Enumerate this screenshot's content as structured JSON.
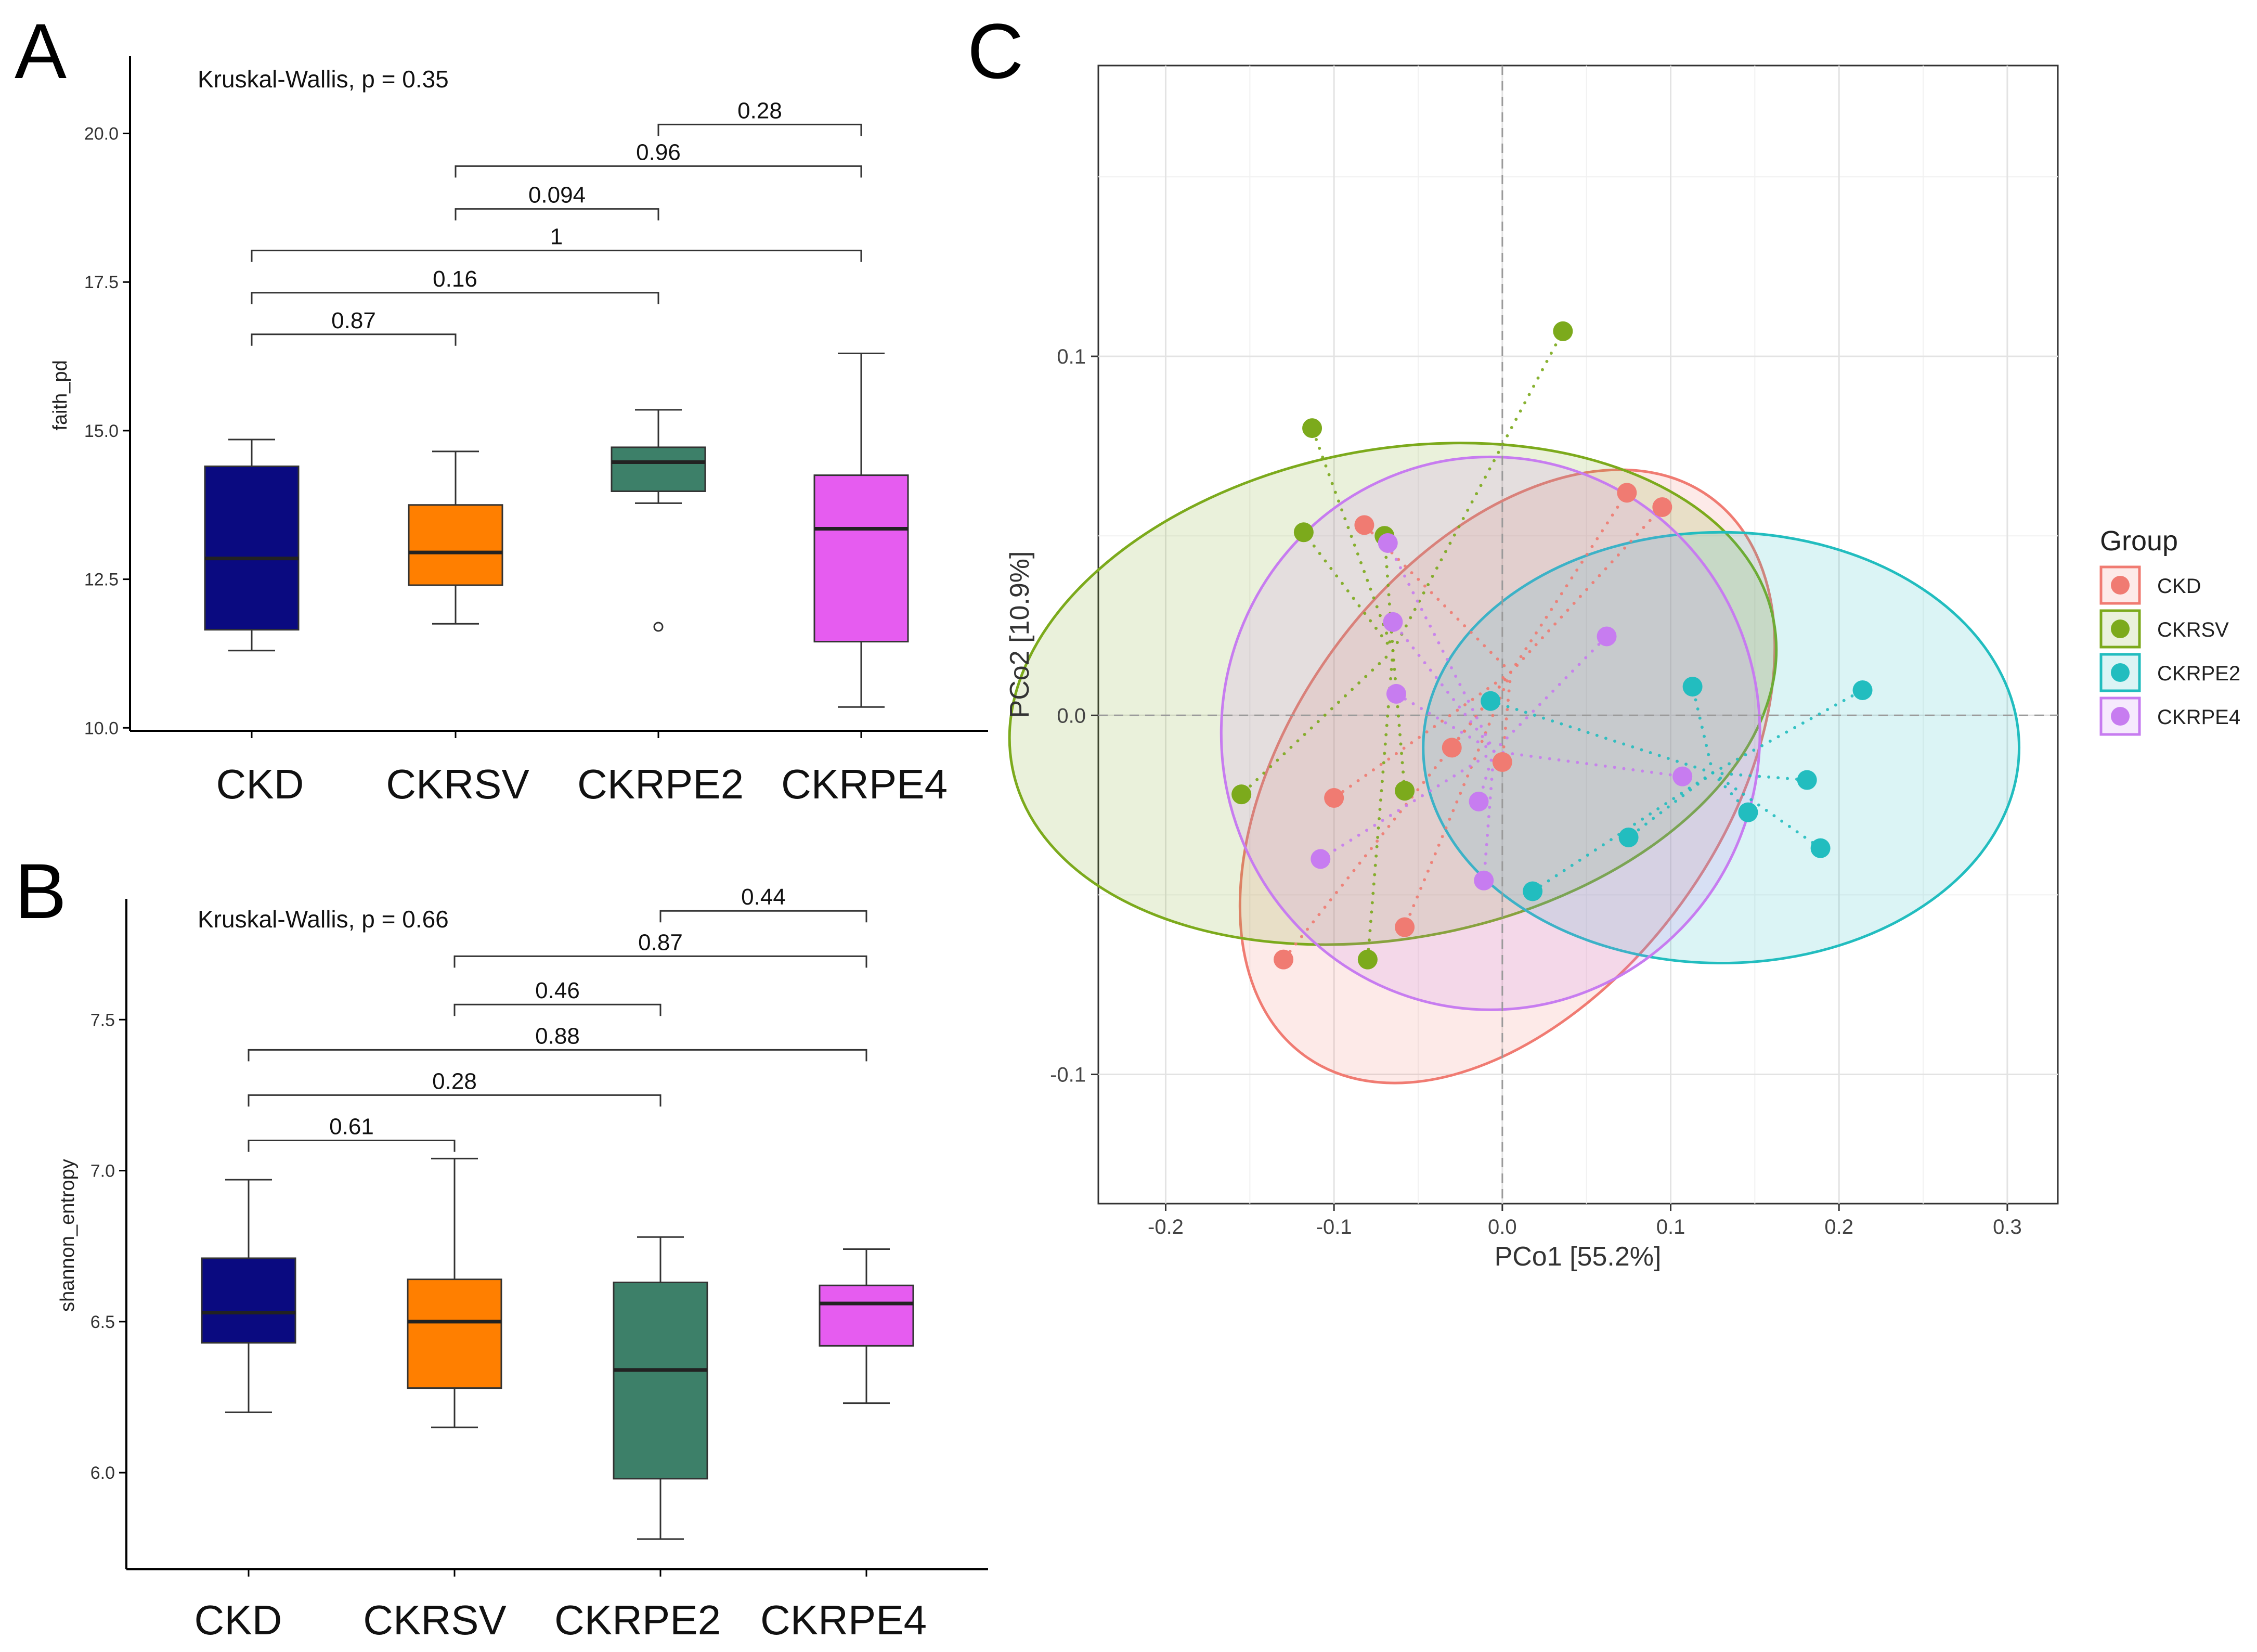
{
  "panels": [
    {
      "letter": "A",
      "chart_data": {
        "type": "box",
        "title": "Kruskal-Wallis, p = 0.35",
        "xlabel": "",
        "ylabel": "faith_pd",
        "ylim": [
          9.95,
          21.3
        ],
        "yticks": [
          10.0,
          12.5,
          15.0,
          17.5,
          20.0
        ],
        "ytick_labels": [
          "10.0",
          "12.5",
          "15.0",
          "17.5",
          "20.0"
        ],
        "categories": [
          "CKD",
          "CKRSV",
          "CKRPE2",
          "CKRPE4"
        ],
        "colors": [
          "#0a0a80",
          "#ff7f00",
          "#3d8069",
          "#e65cf0"
        ],
        "boxes": [
          {
            "group": "CKD",
            "whisker_low": 11.3,
            "q1": 11.65,
            "median": 12.85,
            "q3": 14.4,
            "whisker_high": 14.85,
            "outliers": []
          },
          {
            "group": "CKRSV",
            "whisker_low": 11.75,
            "q1": 12.4,
            "median": 12.95,
            "q3": 13.75,
            "whisker_high": 14.65,
            "outliers": []
          },
          {
            "group": "CKRPE2",
            "whisker_low": 13.78,
            "q1": 13.98,
            "median": 14.47,
            "q3": 14.72,
            "whisker_high": 15.35,
            "outliers": [
              11.7
            ]
          },
          {
            "group": "CKRPE4",
            "whisker_low": 10.35,
            "q1": 11.45,
            "median": 13.35,
            "q3": 14.25,
            "whisker_high": 16.3,
            "outliers": []
          }
        ],
        "comparisons": [
          {
            "from": "CKRPE2",
            "to": "CKRPE4",
            "label": "0.28",
            "y": 20.15
          },
          {
            "from": "CKRSV",
            "to": "CKRPE4",
            "label": "0.96",
            "y": 19.45
          },
          {
            "from": "CKRSV",
            "to": "CKRPE2",
            "label": "0.094",
            "y": 18.73
          },
          {
            "from": "CKD",
            "to": "CKRPE4",
            "label": "1",
            "y": 18.03
          },
          {
            "from": "CKD",
            "to": "CKRPE2",
            "label": "0.16",
            "y": 17.32
          },
          {
            "from": "CKD",
            "to": "CKRSV",
            "label": "0.87",
            "y": 16.62
          }
        ]
      }
    },
    {
      "letter": "B",
      "chart_data": {
        "type": "box",
        "title": "Kruskal-Wallis, p = 0.66",
        "xlabel": "",
        "ylabel": "shannon_entropy",
        "ylim": [
          5.68,
          7.9
        ],
        "yticks": [
          6.0,
          6.5,
          7.0,
          7.5
        ],
        "ytick_labels": [
          "6.0",
          "6.5",
          "7.0",
          "7.5"
        ],
        "categories": [
          "CKD",
          "CKRSV",
          "CKRPE2",
          "CKRPE4"
        ],
        "colors": [
          "#0a0a80",
          "#ff7f00",
          "#3d8069",
          "#e65cf0"
        ],
        "boxes": [
          {
            "group": "CKD",
            "whisker_low": 6.2,
            "q1": 6.43,
            "median": 6.53,
            "q3": 6.71,
            "whisker_high": 6.97,
            "outliers": []
          },
          {
            "group": "CKRSV",
            "whisker_low": 6.15,
            "q1": 6.28,
            "median": 6.5,
            "q3": 6.64,
            "whisker_high": 7.04,
            "outliers": []
          },
          {
            "group": "CKRPE2",
            "whisker_low": 5.78,
            "q1": 5.98,
            "median": 6.34,
            "q3": 6.63,
            "whisker_high": 6.78,
            "outliers": []
          },
          {
            "group": "CKRPE4",
            "whisker_low": 6.23,
            "q1": 6.42,
            "median": 6.56,
            "q3": 6.62,
            "whisker_high": 6.74,
            "outliers": []
          }
        ],
        "comparisons": [
          {
            "from": "CKRPE2",
            "to": "CKRPE4",
            "label": "0.44",
            "y": 7.86
          },
          {
            "from": "CKRSV",
            "to": "CKRPE4",
            "label": "0.87",
            "y": 7.71
          },
          {
            "from": "CKRSV",
            "to": "CKRPE2",
            "label": "0.46",
            "y": 7.55
          },
          {
            "from": "CKD",
            "to": "CKRPE4",
            "label": "0.88",
            "y": 7.4
          },
          {
            "from": "CKD",
            "to": "CKRPE2",
            "label": "0.28",
            "y": 7.25
          },
          {
            "from": "CKD",
            "to": "CKRSV",
            "label": "0.61",
            "y": 7.1
          }
        ]
      }
    },
    {
      "letter": "C",
      "chart_data": {
        "type": "scatter",
        "title": "",
        "xlabel": "PCo1 [55.2%]",
        "ylabel": "PCo2 [10.9%]",
        "xlim": [
          -0.24,
          0.33
        ],
        "ylim": [
          -0.136,
          0.181
        ],
        "xticks": [
          -0.2,
          -0.1,
          0.0,
          0.1,
          0.2,
          0.3
        ],
        "xtick_labels": [
          "-0.2",
          "-0.1",
          "0.0",
          "0.1",
          "0.2",
          "0.3"
        ],
        "yticks": [
          -0.1,
          0.0,
          0.1
        ],
        "ytick_labels": [
          "-0.1",
          "0.0",
          "0.1"
        ],
        "legend_title": "Group",
        "legend_position": "right",
        "series": [
          {
            "name": "CKD",
            "color": "#f07b72",
            "centroid": [
              0.005,
              0.012
            ],
            "ellipse": {
              "cx": 0.003,
              "cy": -0.017,
              "rx": 0.205,
              "ry": 0.06,
              "angle_deg": 54
            },
            "points": [
              [
                -0.13,
                -0.068
              ],
              [
                -0.1,
                -0.023
              ],
              [
                -0.082,
                0.053
              ],
              [
                -0.058,
                -0.059
              ],
              [
                -0.03,
                -0.009
              ],
              [
                0.0,
                -0.013
              ],
              [
                0.074,
                0.062
              ],
              [
                0.095,
                0.058
              ]
            ]
          },
          {
            "name": "CKRSV",
            "color": "#7caa1c",
            "centroid": [
              -0.065,
              0.018
            ],
            "ellipse": {
              "cx": -0.065,
              "cy": 0.006,
              "rx": 0.145,
              "ry": 0.108,
              "angle_deg": -79
            },
            "points": [
              [
                -0.155,
                -0.022
              ],
              [
                -0.118,
                0.051
              ],
              [
                -0.113,
                0.08
              ],
              [
                -0.07,
                0.05
              ],
              [
                -0.058,
                -0.021
              ],
              [
                -0.08,
                -0.068
              ],
              [
                0.036,
                0.107
              ]
            ]
          },
          {
            "name": "CKRPE2",
            "color": "#22bdbf",
            "centroid": [
              0.125,
              -0.016
            ],
            "ellipse": {
              "cx": 0.13,
              "cy": -0.009,
              "rx": 0.177,
              "ry": 0.06,
              "angle_deg": 0
            },
            "points": [
              [
                -0.007,
                0.004
              ],
              [
                0.018,
                -0.049
              ],
              [
                0.075,
                -0.034
              ],
              [
                0.113,
                0.008
              ],
              [
                0.146,
                -0.027
              ],
              [
                0.181,
                -0.018
              ],
              [
                0.189,
                -0.037
              ],
              [
                0.214,
                0.007
              ]
            ]
          },
          {
            "name": "CKRPE4",
            "color": "#c77cf0",
            "centroid": [
              -0.005,
              -0.01
            ],
            "ellipse": {
              "cx": -0.007,
              "cy": -0.005,
              "rx": 0.16,
              "ry": 0.077,
              "angle_deg": 0
            },
            "points": [
              [
                -0.108,
                -0.04
              ],
              [
                -0.068,
                0.048
              ],
              [
                -0.065,
                0.026
              ],
              [
                -0.063,
                0.006
              ],
              [
                -0.014,
                -0.024
              ],
              [
                -0.011,
                -0.046
              ],
              [
                0.062,
                0.022
              ],
              [
                0.107,
                -0.017
              ]
            ]
          }
        ]
      }
    }
  ]
}
